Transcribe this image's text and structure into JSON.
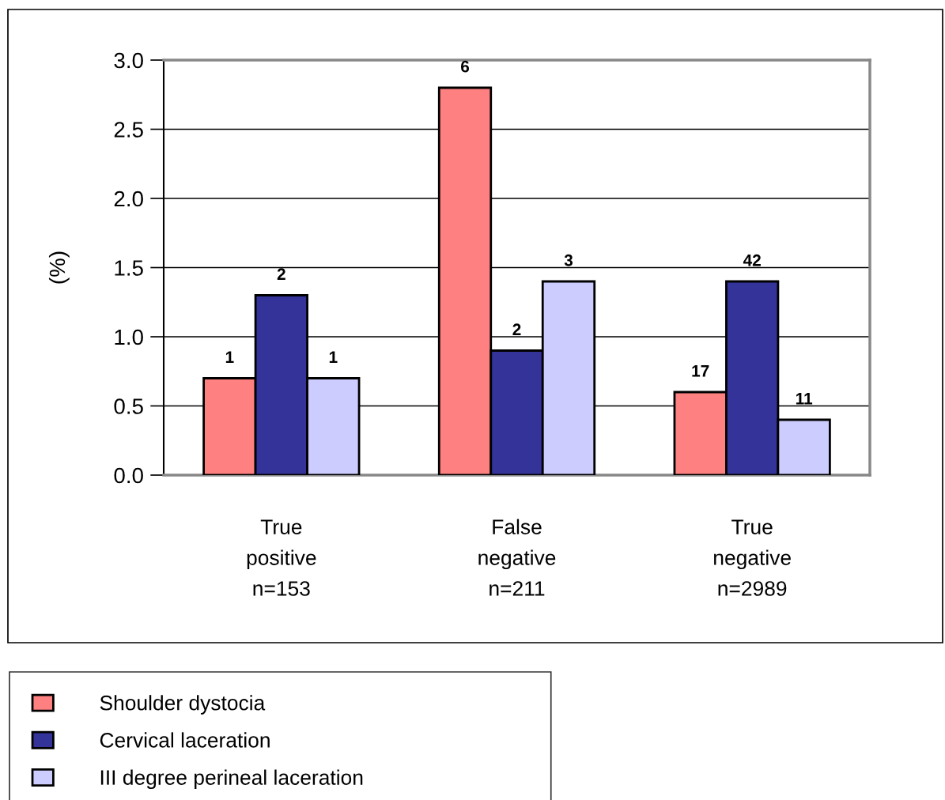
{
  "chart_data": {
    "type": "bar",
    "ylabel": "(%)",
    "categories": [
      "True\npositive\nn=153",
      "False\nnegative\nn=211",
      "True\nnegative\nn=2989"
    ],
    "series": [
      {
        "name": "Shoulder dystocia",
        "color": "#ff8080",
        "values": [
          0.7,
          2.8,
          0.6
        ]
      },
      {
        "name": "Cervical laceration",
        "color": "#333399",
        "values": [
          1.3,
          0.9,
          1.4
        ]
      },
      {
        "name": "III degree perineal laceration",
        "color": "#ccccff",
        "values": [
          0.7,
          1.4,
          0.4
        ]
      }
    ],
    "annotations": [
      "1",
      "6",
      "17",
      "2",
      "2",
      "42",
      "1",
      "3",
      "11"
    ],
    "ylim": [
      0,
      3
    ],
    "yticks": [
      {
        "value": 0,
        "label": "0.0"
      },
      0.5,
      {
        "value": 1,
        "label": "1.0"
      },
      1.5,
      {
        "value": 2,
        "label": "2.0"
      },
      2.5,
      {
        "value": 3,
        "label": "3.0"
      }
    ],
    "grid": "y",
    "legend": "bottom"
  }
}
